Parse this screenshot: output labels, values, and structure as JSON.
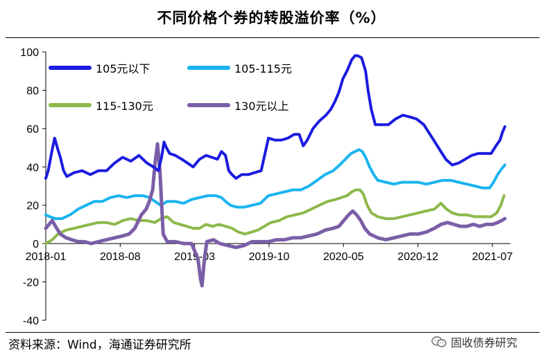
{
  "title": "不同价格个券的转股溢价率（%）",
  "source": "资料来源：Wind，海通证券研究所",
  "watermark": {
    "text": "固收债券研究",
    "icon": "wechat-icon"
  },
  "colors": {
    "s1": "#1B1BE0",
    "s2": "#19B4F0",
    "s3": "#8DB84A",
    "s4": "#7B5EA7",
    "axis": "#000000"
  },
  "chart_data": {
    "type": "line",
    "title": "不同价格个券的转股溢价率（%）",
    "xlabel": "",
    "ylabel": "",
    "ylim": [
      -40,
      100
    ],
    "yticks": [
      "100",
      "80",
      "60",
      "40",
      "20",
      "0",
      "-20",
      "-40"
    ],
    "xticks": [
      "2018-01",
      "2018-08",
      "2019-03",
      "2019-10",
      "2020-05",
      "2020-12",
      "2021-07"
    ],
    "legend_position": "top-left",
    "grid": false,
    "series": [
      {
        "name": "105元以下",
        "points": [
          [
            0,
            34
          ],
          [
            3,
            38
          ],
          [
            8,
            49
          ],
          [
            11,
            55
          ],
          [
            15,
            49
          ],
          [
            18,
            45
          ],
          [
            22,
            38
          ],
          [
            26,
            35
          ],
          [
            35,
            37
          ],
          [
            45,
            38
          ],
          [
            55,
            36
          ],
          [
            65,
            38
          ],
          [
            75,
            38
          ],
          [
            85,
            42
          ],
          [
            95,
            45
          ],
          [
            105,
            43
          ],
          [
            115,
            46
          ],
          [
            125,
            42
          ],
          [
            133,
            40
          ],
          [
            139,
            38
          ],
          [
            143,
            45
          ],
          [
            146,
            53
          ],
          [
            149,
            50
          ],
          [
            153,
            47
          ],
          [
            160,
            46
          ],
          [
            168,
            44
          ],
          [
            175,
            42
          ],
          [
            182,
            40
          ],
          [
            190,
            44
          ],
          [
            198,
            46
          ],
          [
            205,
            45
          ],
          [
            212,
            44
          ],
          [
            217,
            48
          ],
          [
            222,
            46
          ],
          [
            226,
            38
          ],
          [
            230,
            36
          ],
          [
            235,
            34
          ],
          [
            242,
            36
          ],
          [
            250,
            36
          ],
          [
            258,
            37
          ],
          [
            266,
            38
          ],
          [
            275,
            55
          ],
          [
            283,
            54
          ],
          [
            291,
            54
          ],
          [
            299,
            55
          ],
          [
            307,
            57
          ],
          [
            313,
            57
          ],
          [
            318,
            51
          ],
          [
            323,
            54
          ],
          [
            330,
            60
          ],
          [
            338,
            64
          ],
          [
            346,
            67
          ],
          [
            352,
            70
          ],
          [
            357,
            74
          ],
          [
            362,
            79
          ],
          [
            367,
            86
          ],
          [
            372,
            90
          ],
          [
            378,
            96
          ],
          [
            382,
            98
          ],
          [
            385,
            98
          ],
          [
            390,
            97
          ],
          [
            395,
            90
          ],
          [
            398,
            80
          ],
          [
            402,
            70
          ],
          [
            407,
            62
          ],
          [
            415,
            62
          ],
          [
            423,
            62
          ],
          [
            432,
            65
          ],
          [
            441,
            67
          ],
          [
            450,
            66
          ],
          [
            458,
            65
          ],
          [
            467,
            62
          ],
          [
            476,
            56
          ],
          [
            485,
            50
          ],
          [
            494,
            44
          ],
          [
            502,
            41
          ],
          [
            510,
            42
          ],
          [
            518,
            44
          ],
          [
            526,
            46
          ],
          [
            534,
            47
          ],
          [
            542,
            47
          ],
          [
            550,
            47
          ],
          [
            556,
            51
          ],
          [
            561,
            54
          ],
          [
            564,
            58
          ],
          [
            567,
            61
          ]
        ]
      },
      {
        "name": "105-115元",
        "points": [
          [
            0,
            15
          ],
          [
            5,
            14
          ],
          [
            12,
            13
          ],
          [
            20,
            13
          ],
          [
            30,
            15
          ],
          [
            40,
            18
          ],
          [
            50,
            20
          ],
          [
            60,
            22
          ],
          [
            70,
            22
          ],
          [
            80,
            24
          ],
          [
            90,
            25
          ],
          [
            100,
            24
          ],
          [
            110,
            25
          ],
          [
            120,
            25
          ],
          [
            128,
            24
          ],
          [
            135,
            22
          ],
          [
            142,
            20
          ],
          [
            150,
            22
          ],
          [
            160,
            22
          ],
          [
            170,
            21
          ],
          [
            180,
            23
          ],
          [
            190,
            24
          ],
          [
            200,
            25
          ],
          [
            210,
            25
          ],
          [
            217,
            24
          ],
          [
            222,
            22
          ],
          [
            228,
            20
          ],
          [
            236,
            19
          ],
          [
            245,
            19
          ],
          [
            255,
            20
          ],
          [
            265,
            21
          ],
          [
            275,
            25
          ],
          [
            285,
            26
          ],
          [
            295,
            27
          ],
          [
            305,
            28
          ],
          [
            315,
            28
          ],
          [
            325,
            30
          ],
          [
            335,
            33
          ],
          [
            345,
            36
          ],
          [
            355,
            38
          ],
          [
            363,
            41
          ],
          [
            370,
            44
          ],
          [
            377,
            47
          ],
          [
            382,
            48
          ],
          [
            387,
            49
          ],
          [
            391,
            48
          ],
          [
            395,
            45
          ],
          [
            400,
            40
          ],
          [
            405,
            36
          ],
          [
            410,
            33
          ],
          [
            420,
            32
          ],
          [
            430,
            31
          ],
          [
            440,
            32
          ],
          [
            450,
            32
          ],
          [
            460,
            32
          ],
          [
            470,
            31
          ],
          [
            480,
            32
          ],
          [
            490,
            33
          ],
          [
            500,
            33
          ],
          [
            510,
            32
          ],
          [
            520,
            31
          ],
          [
            530,
            30
          ],
          [
            540,
            29
          ],
          [
            548,
            29
          ],
          [
            553,
            32
          ],
          [
            558,
            36
          ],
          [
            563,
            39
          ],
          [
            567,
            41
          ]
        ]
      },
      {
        "name": "115-130元",
        "points": [
          [
            0,
            0
          ],
          [
            8,
            2
          ],
          [
            15,
            5
          ],
          [
            25,
            7
          ],
          [
            35,
            8
          ],
          [
            45,
            9
          ],
          [
            55,
            10
          ],
          [
            65,
            11
          ],
          [
            75,
            11
          ],
          [
            85,
            10
          ],
          [
            95,
            12
          ],
          [
            105,
            13
          ],
          [
            115,
            12
          ],
          [
            125,
            12
          ],
          [
            135,
            11
          ],
          [
            142,
            13
          ],
          [
            150,
            14
          ],
          [
            158,
            11
          ],
          [
            166,
            10
          ],
          [
            174,
            9
          ],
          [
            182,
            8
          ],
          [
            190,
            8
          ],
          [
            198,
            10
          ],
          [
            206,
            9
          ],
          [
            214,
            10
          ],
          [
            222,
            9
          ],
          [
            230,
            8
          ],
          [
            238,
            6
          ],
          [
            246,
            5
          ],
          [
            254,
            6
          ],
          [
            262,
            7
          ],
          [
            270,
            9
          ],
          [
            278,
            11
          ],
          [
            288,
            12
          ],
          [
            298,
            14
          ],
          [
            308,
            15
          ],
          [
            318,
            16
          ],
          [
            328,
            18
          ],
          [
            338,
            20
          ],
          [
            348,
            22
          ],
          [
            358,
            23
          ],
          [
            365,
            24
          ],
          [
            372,
            25
          ],
          [
            378,
            27
          ],
          [
            383,
            28
          ],
          [
            388,
            28
          ],
          [
            392,
            26
          ],
          [
            397,
            20
          ],
          [
            402,
            16
          ],
          [
            410,
            14
          ],
          [
            420,
            13
          ],
          [
            430,
            13
          ],
          [
            440,
            14
          ],
          [
            450,
            15
          ],
          [
            460,
            16
          ],
          [
            470,
            17
          ],
          [
            480,
            18
          ],
          [
            488,
            21
          ],
          [
            495,
            18
          ],
          [
            502,
            16
          ],
          [
            510,
            15
          ],
          [
            520,
            15
          ],
          [
            530,
            14
          ],
          [
            540,
            14
          ],
          [
            550,
            14
          ],
          [
            557,
            16
          ],
          [
            562,
            20
          ],
          [
            566,
            25
          ]
        ]
      },
      {
        "name": "130元以上",
        "points": [
          [
            0,
            8
          ],
          [
            4,
            10
          ],
          [
            8,
            12
          ],
          [
            12,
            9
          ],
          [
            18,
            5
          ],
          [
            25,
            3
          ],
          [
            32,
            2
          ],
          [
            40,
            1
          ],
          [
            48,
            1
          ],
          [
            56,
            0
          ],
          [
            65,
            1
          ],
          [
            75,
            2
          ],
          [
            85,
            3
          ],
          [
            95,
            4
          ],
          [
            103,
            5
          ],
          [
            110,
            8
          ],
          [
            118,
            15
          ],
          [
            124,
            18
          ],
          [
            128,
            22
          ],
          [
            132,
            28
          ],
          [
            135,
            42
          ],
          [
            138,
            52
          ],
          [
            141,
            38
          ],
          [
            145,
            5
          ],
          [
            150,
            1
          ],
          [
            160,
            1
          ],
          [
            170,
            0
          ],
          [
            180,
            0
          ],
          [
            188,
            -8
          ],
          [
            191,
            -18
          ],
          [
            193,
            -22
          ],
          [
            196,
            -8
          ],
          [
            199,
            1
          ],
          [
            207,
            2
          ],
          [
            215,
            0
          ],
          [
            225,
            -1
          ],
          [
            235,
            -2
          ],
          [
            245,
            -1
          ],
          [
            255,
            1
          ],
          [
            265,
            1
          ],
          [
            275,
            1
          ],
          [
            285,
            2
          ],
          [
            295,
            2
          ],
          [
            305,
            3
          ],
          [
            315,
            3
          ],
          [
            325,
            4
          ],
          [
            335,
            5
          ],
          [
            345,
            7
          ],
          [
            355,
            8
          ],
          [
            362,
            9
          ],
          [
            368,
            12
          ],
          [
            374,
            15
          ],
          [
            379,
            17
          ],
          [
            384,
            15
          ],
          [
            389,
            12
          ],
          [
            394,
            8
          ],
          [
            400,
            5
          ],
          [
            410,
            3
          ],
          [
            420,
            2
          ],
          [
            430,
            3
          ],
          [
            440,
            4
          ],
          [
            450,
            5
          ],
          [
            460,
            5
          ],
          [
            470,
            6
          ],
          [
            480,
            8
          ],
          [
            488,
            10
          ],
          [
            496,
            11
          ],
          [
            504,
            10
          ],
          [
            512,
            9
          ],
          [
            520,
            9
          ],
          [
            528,
            10
          ],
          [
            536,
            9
          ],
          [
            544,
            10
          ],
          [
            552,
            10
          ],
          [
            558,
            11
          ],
          [
            563,
            12
          ],
          [
            567,
            13
          ]
        ]
      }
    ]
  }
}
